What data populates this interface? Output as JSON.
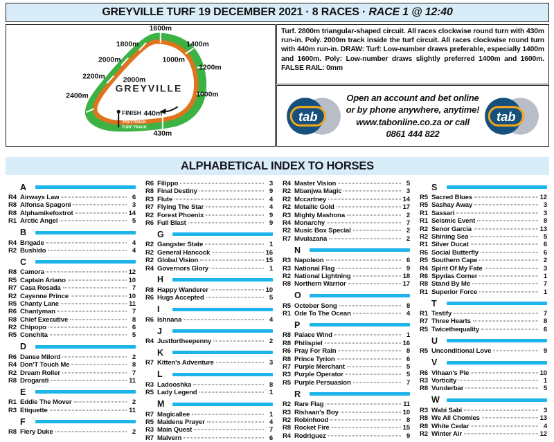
{
  "header": {
    "title_left": "GREYVILLE TURF 19 DECEMBER 2021 · 8 RACES · ",
    "title_race": "RACE 1 @ 12:40"
  },
  "track": {
    "name": "GREYVILLE",
    "labels": [
      "1600m",
      "1800m",
      "2000m",
      "2200m",
      "2400m",
      "1400m",
      "1000m",
      "1200m",
      "1000m",
      "2000m"
    ],
    "finish_label": "FINISH",
    "mark_440": "440m",
    "mark_430": "430m",
    "polytrack_label": "POLYTRACK",
    "turf_label": "TURF TRACK",
    "colors": {
      "turf_green": "#3cb244",
      "poly_orange": "#e0731d"
    }
  },
  "info": {
    "text": "Turf. 2800m triangular-shaped circuit. All races clockwise round turn with 430m run-in. Poly. 2000m track inside the turf circuit. All races clockwise round turn with 440m run-in. DRAW: Turf: Low-number draws preferable, especially 1400m and 1600m. Poly: Low-number draws slightly preferred 1400m and 1600m. FALSE RAIL: 0mm"
  },
  "ad": {
    "logo_text": "tab",
    "lines": [
      "Open an account and bet online",
      "or by phone anywhere, anytime!",
      "www.tabonline.co.za or call",
      "0861 444 822"
    ],
    "colors": {
      "navy": "#16517d",
      "gold": "#f3a51c",
      "gray": "#b8bdc7"
    }
  },
  "index": {
    "title": "ALPHABETICAL INDEX TO HORSES",
    "accent_color": "#1db4ea",
    "columns": [
      [
        {
          "letter": "A",
          "entries": [
            [
              "R4",
              "Airways Law",
              "6"
            ],
            [
              "R8",
              "Alfonsa Spagoni",
              "3"
            ],
            [
              "R8",
              "Alphamikefoxtrot",
              "14"
            ],
            [
              "R1",
              "Arctic Angel",
              "5"
            ]
          ]
        },
        {
          "letter": "B",
          "entries": [
            [
              "R4",
              "Brigade",
              "4"
            ],
            [
              "R2",
              "Bushido",
              "4"
            ]
          ]
        },
        {
          "letter": "C",
          "entries": [
            [
              "R8",
              "Camora",
              "12"
            ],
            [
              "R5",
              "Captain Ariano",
              "10"
            ],
            [
              "R7",
              "Casa Rosada",
              "7"
            ],
            [
              "R2",
              "Cayenne Prince",
              "10"
            ],
            [
              "R5",
              "Chanty Lane",
              "11"
            ],
            [
              "R6",
              "Chantyman",
              "7"
            ],
            [
              "R8",
              "Chief Executive",
              "8"
            ],
            [
              "R2",
              "Chipopo",
              "6"
            ],
            [
              "R5",
              "Conchita",
              "5"
            ]
          ]
        },
        {
          "letter": "D",
          "entries": [
            [
              "R6",
              "Danse Milord",
              "2"
            ],
            [
              "R4",
              "Don'T Touch Me",
              "8"
            ],
            [
              "R2",
              "Dream Roller",
              "7"
            ],
            [
              "R8",
              "Drogarati",
              "11"
            ]
          ]
        },
        {
          "letter": "E",
          "entries": [
            [
              "R1",
              "Eddie The Mover",
              "2"
            ],
            [
              "R3",
              "Etiquette",
              "11"
            ]
          ]
        },
        {
          "letter": "F",
          "entries": [
            [
              "R8",
              "Fiery Duke",
              "2"
            ]
          ]
        }
      ],
      [
        {
          "letter": "",
          "entries": [
            [
              "R6",
              "Filippo",
              "3"
            ],
            [
              "R8",
              "Final Destiny",
              "9"
            ],
            [
              "R3",
              "Flute",
              "4"
            ],
            [
              "R7",
              "Flying The Star",
              "4"
            ],
            [
              "R2",
              "Forest Phoenix",
              "9"
            ],
            [
              "R6",
              "Full Blast",
              "9"
            ]
          ]
        },
        {
          "letter": "G",
          "entries": [
            [
              "R2",
              "Gangster State",
              "1"
            ],
            [
              "R2",
              "General Hancock",
              "16"
            ],
            [
              "R2",
              "Global Vision",
              "15"
            ],
            [
              "R4",
              "Governors Glory",
              "1"
            ]
          ]
        },
        {
          "letter": "H",
          "entries": [
            [
              "R8",
              "Happy Wanderer",
              "10"
            ],
            [
              "R6",
              "Hugs Accepted",
              "5"
            ]
          ]
        },
        {
          "letter": "I",
          "entries": [
            [
              "R6",
              "Ishnana",
              "4"
            ]
          ]
        },
        {
          "letter": "J",
          "entries": [
            [
              "R4",
              "Justfortheepenny",
              "2"
            ]
          ]
        },
        {
          "letter": "K",
          "entries": [
            [
              "R7",
              "Kitten's Adventure",
              "3"
            ]
          ]
        },
        {
          "letter": "L",
          "entries": [
            [
              "R3",
              "Ladooshka",
              "8"
            ],
            [
              "R5",
              "Lady Legend",
              "1"
            ]
          ]
        },
        {
          "letter": "M",
          "entries": [
            [
              "R7",
              "Magicallee",
              "1"
            ],
            [
              "R5",
              "Maidens Prayer",
              "4"
            ],
            [
              "R3",
              "Main Quest",
              "7"
            ],
            [
              "R7",
              "Malvern",
              "6"
            ]
          ]
        }
      ],
      [
        {
          "letter": "",
          "entries": [
            [
              "R4",
              "Master Vision",
              "5"
            ],
            [
              "R2",
              "Mbanjwa Magic",
              "3"
            ],
            [
              "R2",
              "Mccartney",
              "14"
            ],
            [
              "R2",
              "Metallic Gold",
              "17"
            ],
            [
              "R3",
              "Mighty Mashona",
              "2"
            ],
            [
              "R4",
              "Monarchy",
              "7"
            ],
            [
              "R2",
              "Music Box Special",
              "2"
            ],
            [
              "R7",
              "Mvulazana",
              "2"
            ]
          ]
        },
        {
          "letter": "N",
          "entries": [
            [
              "R3",
              "Napoleon",
              "6"
            ],
            [
              "R3",
              "National Flag",
              "9"
            ],
            [
              "R2",
              "National Lightning",
              "18"
            ],
            [
              "R8",
              "Northern Warrior",
              "17"
            ]
          ]
        },
        {
          "letter": "O",
          "entries": [
            [
              "R5",
              "October Song",
              "8"
            ],
            [
              "R1",
              "Ode To The Ocean",
              "4"
            ]
          ]
        },
        {
          "letter": "P",
          "entries": [
            [
              "R8",
              "Palace Wind",
              "1"
            ],
            [
              "R8",
              "Philispiel",
              "16"
            ],
            [
              "R6",
              "Pray For Rain",
              "8"
            ],
            [
              "R8",
              "Prince Tyrion",
              "6"
            ],
            [
              "R7",
              "Purple Merchant",
              "5"
            ],
            [
              "R3",
              "Purple Operator",
              "5"
            ],
            [
              "R5",
              "Purple Persuasion",
              "7"
            ]
          ]
        },
        {
          "letter": "R",
          "entries": [
            [
              "R2",
              "Rare Flag",
              "11"
            ],
            [
              "R3",
              "Rishaan's Boy",
              "10"
            ],
            [
              "R2",
              "Robinhood",
              "8"
            ],
            [
              "R8",
              "Rocket Fire",
              "15"
            ],
            [
              "R4",
              "Rodriguez",
              "9"
            ]
          ]
        }
      ],
      [
        {
          "letter": "S",
          "entries": [
            [
              "R5",
              "Sacred Blues",
              "12"
            ],
            [
              "R5",
              "Sashay Away",
              "3"
            ],
            [
              "R1",
              "Sassari",
              "3"
            ],
            [
              "R1",
              "Seismic Event",
              "8"
            ],
            [
              "R2",
              "Senor Garcia",
              "13"
            ],
            [
              "R2",
              "Shining Sea",
              "5"
            ],
            [
              "R1",
              "Silver Ducat",
              "6"
            ],
            [
              "R6",
              "Social Butterfly",
              "6"
            ],
            [
              "R5",
              "Southern Cape",
              "2"
            ],
            [
              "R4",
              "Spirit Of My Fate",
              "3"
            ],
            [
              "R6",
              "Spydas Corner",
              "1"
            ],
            [
              "R8",
              "Stand By Me",
              "7"
            ],
            [
              "R1",
              "Superior Force",
              "1"
            ]
          ]
        },
        {
          "letter": "T",
          "entries": [
            [
              "R1",
              "Testify",
              "7"
            ],
            [
              "R7",
              "Three Hearts",
              "8"
            ],
            [
              "R5",
              "Twicethequality",
              "6"
            ]
          ]
        },
        {
          "letter": "U",
          "entries": [
            [
              "R5",
              "Unconditional Love",
              "9"
            ]
          ]
        },
        {
          "letter": "V",
          "entries": [
            [
              "R6",
              "Vihaan's Pie",
              "10"
            ],
            [
              "R3",
              "Vorticity",
              "1"
            ],
            [
              "R8",
              "Vunderbar",
              "5"
            ]
          ]
        },
        {
          "letter": "W",
          "entries": [
            [
              "R3",
              "Wabi Sabi",
              "3"
            ],
            [
              "R8",
              "We All Chomies",
              "13"
            ],
            [
              "R8",
              "White Cedar",
              "4"
            ],
            [
              "R2",
              "Winter Air",
              "12"
            ]
          ]
        }
      ]
    ]
  }
}
